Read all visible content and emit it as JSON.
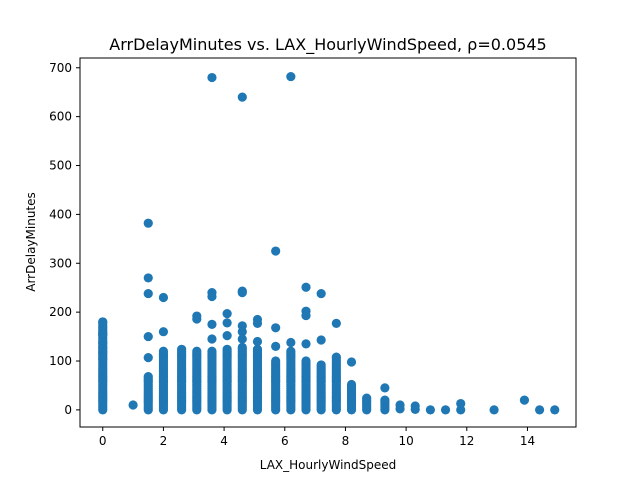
{
  "chart_data": {
    "type": "scatter",
    "title": "ArrDelayMinutes vs. LAX_HourlyWindSpeed, ρ=0.0545",
    "xlabel": "LAX_HourlyWindSpeed",
    "ylabel": "ArrDelayMinutes",
    "xlim": [
      -0.75,
      15.6
    ],
    "ylim": [
      -35,
      720
    ],
    "xticks": [
      0,
      2,
      4,
      6,
      8,
      10,
      12,
      14
    ],
    "yticks": [
      0,
      100,
      200,
      300,
      400,
      500,
      600,
      700
    ],
    "grid": false,
    "color": "#1f77b4",
    "dense_columns": [
      {
        "x": 0,
        "max": 180
      },
      {
        "x": 1.5,
        "max": 70
      },
      {
        "x": 2,
        "max": 120
      },
      {
        "x": 2.6,
        "max": 125
      },
      {
        "x": 3.1,
        "max": 120
      },
      {
        "x": 3.6,
        "max": 120
      },
      {
        "x": 4.1,
        "max": 125
      },
      {
        "x": 4.6,
        "max": 130
      },
      {
        "x": 5.1,
        "max": 125
      },
      {
        "x": 5.7,
        "max": 100
      },
      {
        "x": 6.2,
        "max": 120
      },
      {
        "x": 6.7,
        "max": 100
      },
      {
        "x": 7.2,
        "max": 95
      },
      {
        "x": 7.7,
        "max": 110
      },
      {
        "x": 8.2,
        "max": 55
      },
      {
        "x": 8.7,
        "max": 25
      },
      {
        "x": 9.3,
        "max": 20
      }
    ],
    "points": [
      {
        "x": 0,
        "y": 180
      },
      {
        "x": 0,
        "y": 155
      },
      {
        "x": 0,
        "y": 138
      },
      {
        "x": 0,
        "y": 128
      },
      {
        "x": 0,
        "y": 118
      },
      {
        "x": 0,
        "y": 104
      },
      {
        "x": 1.0,
        "y": 10
      },
      {
        "x": 1.5,
        "y": 382
      },
      {
        "x": 1.5,
        "y": 270
      },
      {
        "x": 1.5,
        "y": 238
      },
      {
        "x": 1.5,
        "y": 150
      },
      {
        "x": 1.5,
        "y": 107
      },
      {
        "x": 2,
        "y": 230
      },
      {
        "x": 2,
        "y": 160
      },
      {
        "x": 3.1,
        "y": 192
      },
      {
        "x": 3.1,
        "y": 186
      },
      {
        "x": 3.6,
        "y": 680
      },
      {
        "x": 3.6,
        "y": 240
      },
      {
        "x": 3.6,
        "y": 232
      },
      {
        "x": 3.6,
        "y": 175
      },
      {
        "x": 3.6,
        "y": 145
      },
      {
        "x": 4.1,
        "y": 197
      },
      {
        "x": 4.1,
        "y": 178
      },
      {
        "x": 4.1,
        "y": 152
      },
      {
        "x": 4.6,
        "y": 640
      },
      {
        "x": 4.6,
        "y": 243
      },
      {
        "x": 4.6,
        "y": 240
      },
      {
        "x": 4.6,
        "y": 172
      },
      {
        "x": 4.6,
        "y": 160
      },
      {
        "x": 4.6,
        "y": 145
      },
      {
        "x": 5.1,
        "y": 185
      },
      {
        "x": 5.1,
        "y": 177
      },
      {
        "x": 5.1,
        "y": 140
      },
      {
        "x": 5.7,
        "y": 325
      },
      {
        "x": 5.7,
        "y": 168
      },
      {
        "x": 5.7,
        "y": 130
      },
      {
        "x": 6.2,
        "y": 682
      },
      {
        "x": 6.2,
        "y": 138
      },
      {
        "x": 6.7,
        "y": 251
      },
      {
        "x": 6.7,
        "y": 202
      },
      {
        "x": 6.7,
        "y": 193
      },
      {
        "x": 6.7,
        "y": 135
      },
      {
        "x": 7.2,
        "y": 238
      },
      {
        "x": 7.2,
        "y": 143
      },
      {
        "x": 7.7,
        "y": 177
      },
      {
        "x": 8.2,
        "y": 98
      },
      {
        "x": 9.3,
        "y": 45
      },
      {
        "x": 9.8,
        "y": 10
      },
      {
        "x": 9.8,
        "y": 2
      },
      {
        "x": 10.3,
        "y": 8
      },
      {
        "x": 10.3,
        "y": 1
      },
      {
        "x": 10.8,
        "y": 0
      },
      {
        "x": 11.3,
        "y": 0
      },
      {
        "x": 11.8,
        "y": 13
      },
      {
        "x": 11.8,
        "y": 0
      },
      {
        "x": 12.9,
        "y": 0
      },
      {
        "x": 13.9,
        "y": 20
      },
      {
        "x": 14.4,
        "y": 0
      },
      {
        "x": 14.9,
        "y": 0
      }
    ]
  }
}
